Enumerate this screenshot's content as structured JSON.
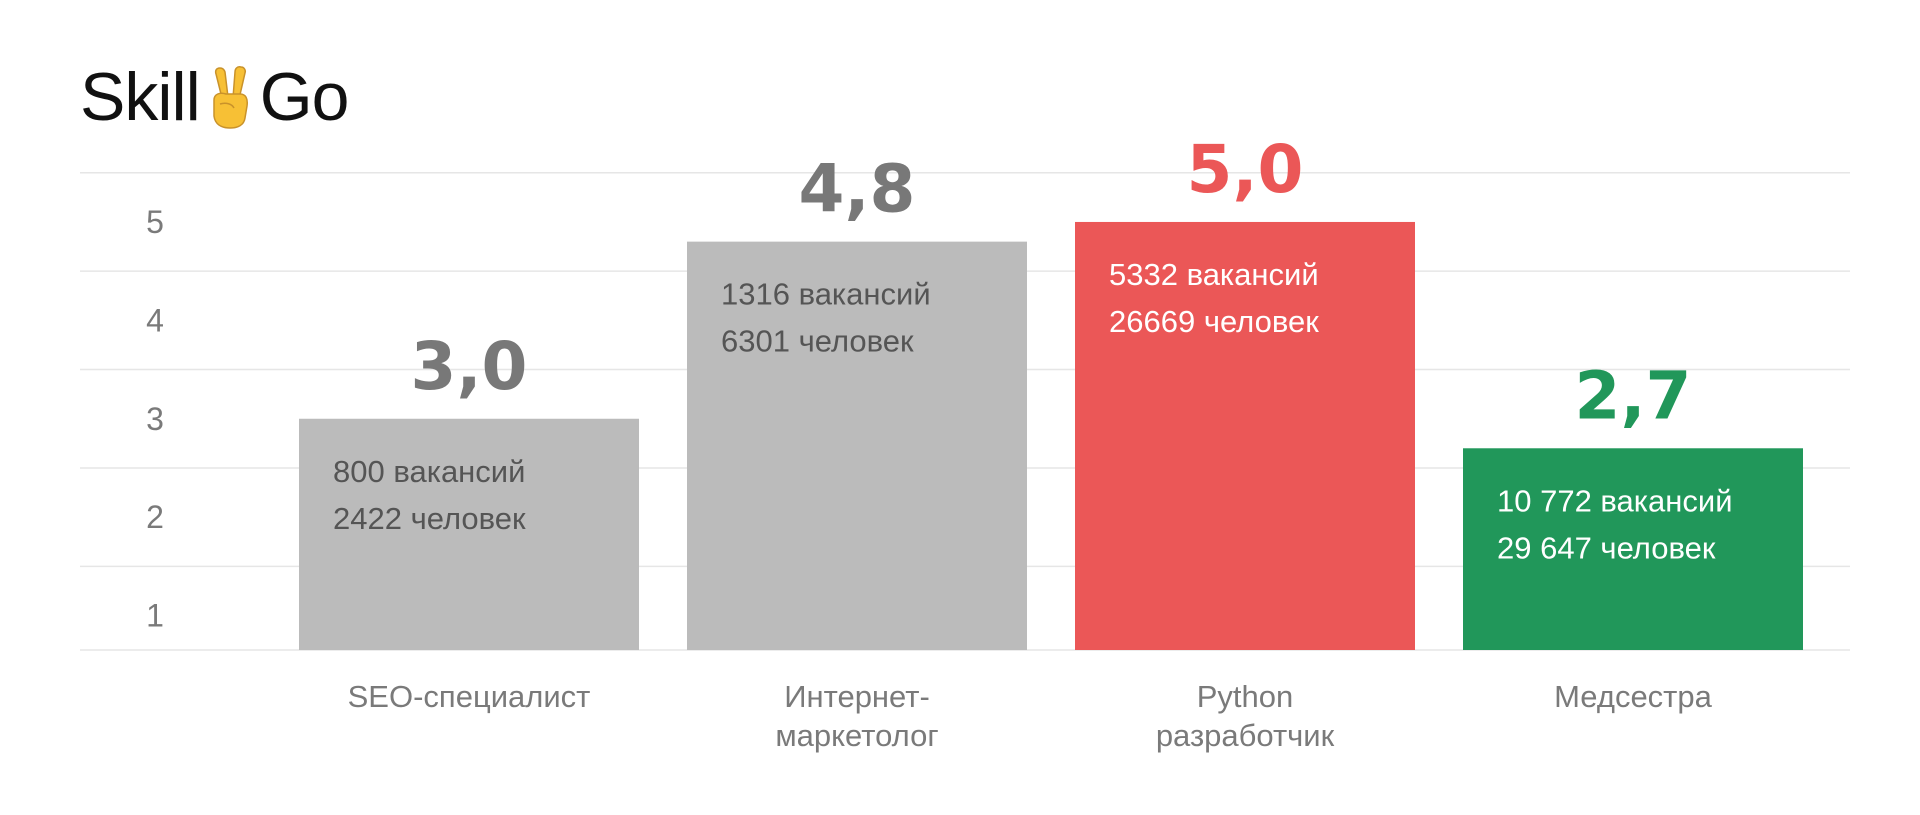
{
  "logo": {
    "left": "Skill",
    "right": "Go",
    "emoji": "victory-hand-icon"
  },
  "chart_data": {
    "type": "bar",
    "title": "",
    "xlabel": "",
    "ylabel": "",
    "ylim": [
      0.65,
      5.65
    ],
    "yticks": [
      1,
      2,
      3,
      4,
      5
    ],
    "grid": true,
    "categories": [
      "SEO-специалист",
      "Интернет-маркетолог",
      "Python разработчик",
      "Медсестра"
    ],
    "category_lines": [
      [
        "SEO-специалист"
      ],
      [
        "Интернет-",
        "маркетолог"
      ],
      [
        "Python",
        "разработчик"
      ],
      [
        "Медсестра"
      ]
    ],
    "values": [
      3.0,
      4.8,
      5.0,
      2.7
    ],
    "value_labels": [
      "3,0",
      "4,8",
      "5,0",
      "2,7"
    ],
    "bar_text": [
      [
        "800 вакансий",
        "2422 человек"
      ],
      [
        "1316 вакансий",
        "6301 человек"
      ],
      [
        "5332 вакансий",
        "26669 человек"
      ],
      [
        "10 772 вакансий",
        "29 647 человек"
      ]
    ],
    "colors": {
      "bars": [
        "#bbbbbb",
        "#bbbbbb",
        "#eb5757",
        "#21975a"
      ],
      "value_labels": [
        "#787878",
        "#787878",
        "#eb5757",
        "#21975a"
      ],
      "bar_text": [
        "#555555",
        "#555555",
        "#ffffff",
        "#ffffff"
      ],
      "grid": "#e6e6e6",
      "ticks": "#7a7a7a"
    }
  }
}
